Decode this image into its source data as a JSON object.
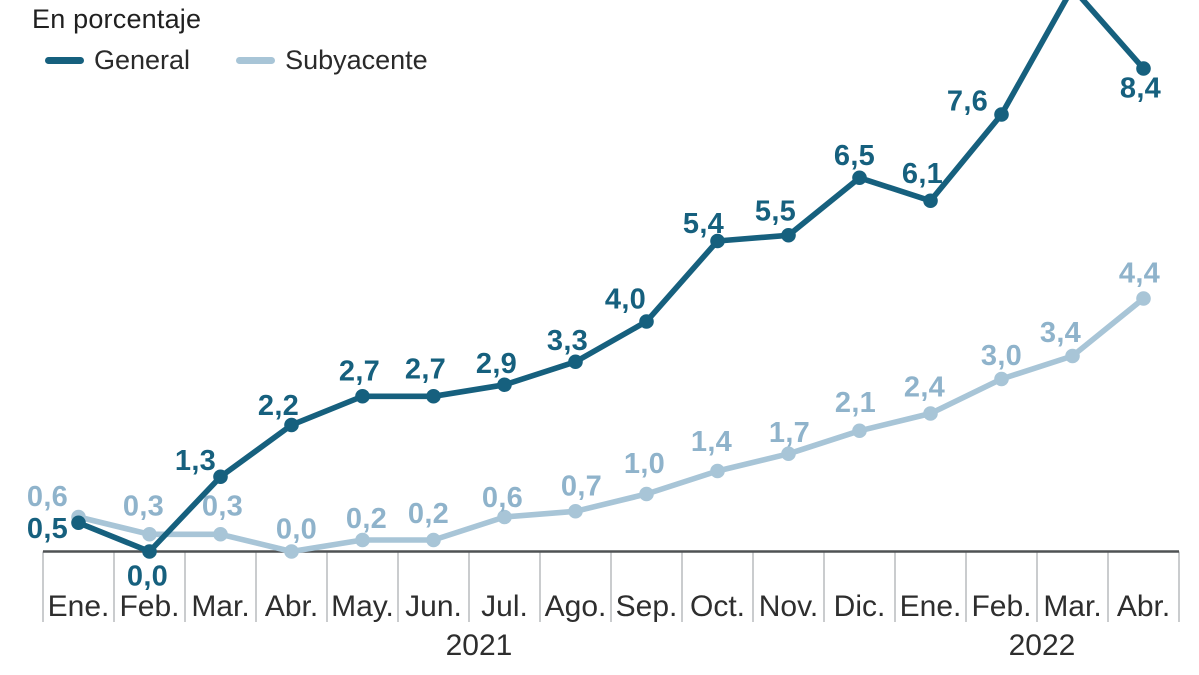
{
  "header": {
    "title": "En porcentaje"
  },
  "legend": [
    {
      "label": "General",
      "color": "#16607e"
    },
    {
      "label": "Subyacente",
      "color": "#a8c5d7"
    }
  ],
  "chart_data": {
    "type": "line",
    "title": "En porcentaje",
    "xlabel": "",
    "ylabel": "",
    "ylim": [
      0,
      9.8
    ],
    "y_axis_hidden": true,
    "grid": false,
    "legend_position": "top-left",
    "top_clipped": true,
    "x_categories": [
      "Ene.",
      "Feb.",
      "Mar.",
      "Abr.",
      "May.",
      "Jun.",
      "Jul.",
      "Ago.",
      "Sep.",
      "Oct.",
      "Nov.",
      "Dic.",
      "Ene.",
      "Feb.",
      "Mar.",
      "Abr."
    ],
    "x_year_groups": [
      {
        "label": "2021",
        "start": 0,
        "months": 12,
        "dx": 10
      },
      {
        "label": "2022",
        "start": 12,
        "months": 4,
        "dx": 5
      }
    ],
    "series": [
      {
        "name": "General",
        "color": "#16607e",
        "label_color": "#16607e",
        "values": [
          0.5,
          0.0,
          1.3,
          2.2,
          2.7,
          2.7,
          2.9,
          3.3,
          4.0,
          5.4,
          5.5,
          6.5,
          6.1,
          7.6,
          9.8,
          8.4
        ],
        "point_labels": [
          "0,5",
          "0,0",
          "1,3",
          "2,2",
          "2,7",
          "2,7",
          "2,9",
          "3,3",
          "4,0",
          "5,4",
          "5,5",
          "6,5",
          "6,1",
          "7,6",
          "",
          "8,4"
        ],
        "label_offsets": [
          [
            -31,
            5
          ],
          [
            -2,
            24
          ],
          [
            -25,
            -17
          ],
          [
            -13,
            -20
          ],
          [
            -3,
            -26
          ],
          [
            -8,
            -28
          ],
          [
            -8,
            -22
          ],
          [
            -8,
            -22
          ],
          [
            -21,
            -23
          ],
          [
            -14,
            -18
          ],
          [
            -13,
            -25
          ],
          [
            -5,
            -23
          ],
          [
            -8,
            -28
          ],
          [
            -34,
            -14
          ],
          [
            0,
            0
          ],
          [
            -3,
            19
          ]
        ]
      },
      {
        "name": "Subyacente",
        "color": "#a8c5d7",
        "label_color": "#8fb3cb",
        "values": [
          0.6,
          0.3,
          0.3,
          0.0,
          0.2,
          0.2,
          0.6,
          0.7,
          1.0,
          1.4,
          1.7,
          2.1,
          2.4,
          3.0,
          3.4,
          4.4
        ],
        "point_labels": [
          "0,6",
          "0,3",
          "0,3",
          "0,0",
          "0,2",
          "0,2",
          "0,6",
          "0,7",
          "1,0",
          "1,4",
          "1,7",
          "2,1",
          "2,4",
          "3,0",
          "3,4",
          "4,4"
        ],
        "label_offsets": [
          [
            -31,
            -21
          ],
          [
            -6,
            -29
          ],
          [
            2,
            -29
          ],
          [
            5,
            -23
          ],
          [
            4,
            -22
          ],
          [
            -5,
            -27
          ],
          [
            -2,
            -20
          ],
          [
            6,
            -26
          ],
          [
            -2,
            -31
          ],
          [
            -6,
            -30
          ],
          [
            1,
            -22
          ],
          [
            -4,
            -29
          ],
          [
            -6,
            -27
          ],
          [
            0,
            -24
          ],
          [
            -12,
            -24
          ],
          [
            -4,
            -26
          ]
        ]
      }
    ],
    "axis_color": "#4f5254",
    "tick_color": "#c5c7c8"
  }
}
